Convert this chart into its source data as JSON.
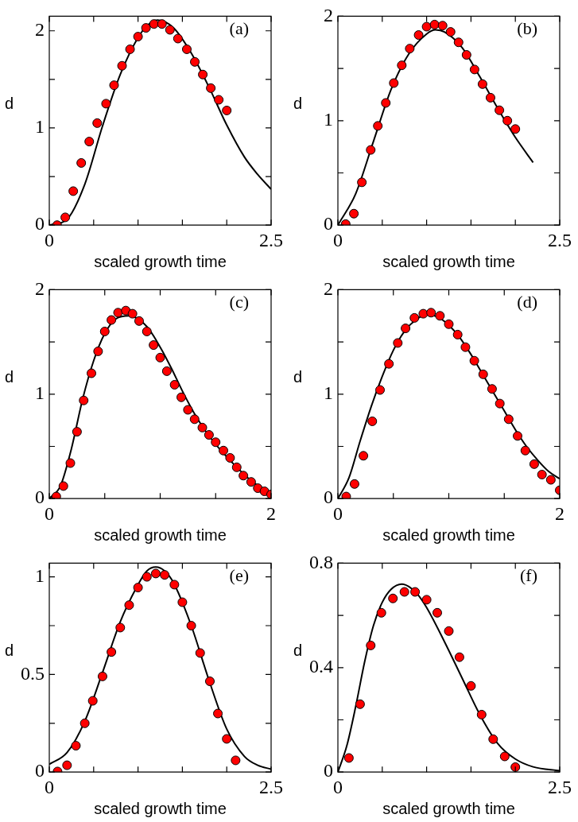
{
  "chart_data": [
    {
      "type": "scatter",
      "xlabel": "scaled growth time",
      "ylabel": "d",
      "annotations": [
        "(a)"
      ],
      "xlim": [
        0,
        2.5
      ],
      "ylim": [
        0,
        2.15
      ],
      "xticks": [
        0,
        {
          "value": 0.5,
          "label": null
        },
        {
          "value": 1,
          "label": null
        },
        {
          "value": 1.5,
          "label": null
        },
        {
          "value": 2,
          "label": null
        },
        2.5
      ],
      "yticks": [
        0,
        {
          "value": 0.5,
          "label": null
        },
        1,
        {
          "value": 1.5,
          "label": null
        },
        2
      ],
      "grid": false,
      "legend": false,
      "series": [
        {
          "type": "line",
          "color": "#000000",
          "marker": "none",
          "line_style": "solid",
          "x": [
            0,
            0.2,
            0.4,
            0.6,
            0.8,
            1.0,
            1.1,
            1.22,
            1.4,
            1.6,
            1.8,
            2.0,
            2.2,
            2.35,
            2.5
          ],
          "values": [
            0,
            0.06,
            0.42,
            1.02,
            1.55,
            1.93,
            2.05,
            2.11,
            2.03,
            1.77,
            1.42,
            1.03,
            0.7,
            0.52,
            0.37
          ]
        },
        {
          "type": "scatter",
          "color": "#ff0000",
          "marker": "circle",
          "x": [
            0.088,
            0.18,
            0.27,
            0.36,
            0.45,
            0.54,
            0.64,
            0.73,
            0.82,
            0.91,
            1.0,
            1.09,
            1.18,
            1.27,
            1.36,
            1.45,
            1.55,
            1.64,
            1.73,
            1.82,
            1.91,
            2.0
          ],
          "values": [
            0,
            0.08,
            0.35,
            0.64,
            0.86,
            1.05,
            1.25,
            1.44,
            1.64,
            1.81,
            1.94,
            2.03,
            2.07,
            2.07,
            2.01,
            1.92,
            1.81,
            1.68,
            1.55,
            1.41,
            1.29,
            1.18
          ]
        }
      ]
    },
    {
      "type": "scatter",
      "xlabel": "scaled growth time",
      "ylabel": "d",
      "annotations": [
        "(b)"
      ],
      "xlim": [
        0,
        2.5
      ],
      "ylim": [
        0,
        2
      ],
      "xticks": [
        0,
        {
          "value": 0.5,
          "label": null
        },
        {
          "value": 1,
          "label": null
        },
        {
          "value": 1.5,
          "label": null
        },
        {
          "value": 2,
          "label": null
        },
        2.5
      ],
      "yticks": [
        0,
        {
          "value": 0.5,
          "label": null
        },
        1,
        {
          "value": 1.5,
          "label": null
        },
        2
      ],
      "grid": false,
      "legend": false,
      "series": [
        {
          "type": "line",
          "color": "#000000",
          "marker": "none",
          "line_style": "solid",
          "x": [
            0,
            0.2,
            0.4,
            0.6,
            0.8,
            1.0,
            1.1,
            1.2,
            1.4,
            1.6,
            1.8,
            2.0,
            2.2
          ],
          "values": [
            0,
            0.3,
            0.8,
            1.3,
            1.64,
            1.83,
            1.87,
            1.85,
            1.7,
            1.42,
            1.12,
            0.84,
            0.6
          ]
        },
        {
          "type": "scatter",
          "color": "#ff0000",
          "marker": "circle",
          "x": [
            0.088,
            0.18,
            0.27,
            0.37,
            0.45,
            0.54,
            0.63,
            0.72,
            0.81,
            0.91,
            1.0,
            1.09,
            1.18,
            1.27,
            1.36,
            1.45,
            1.54,
            1.63,
            1.72,
            1.82,
            1.91,
            2.0
          ],
          "values": [
            0.01,
            0.11,
            0.41,
            0.72,
            0.95,
            1.17,
            1.36,
            1.53,
            1.69,
            1.82,
            1.9,
            1.92,
            1.91,
            1.85,
            1.75,
            1.63,
            1.49,
            1.35,
            1.22,
            1.1,
            1.0,
            0.92
          ]
        }
      ]
    },
    {
      "type": "scatter",
      "xlabel": "scaled growth time",
      "ylabel": "d",
      "annotations": [
        "(c)"
      ],
      "xlim": [
        0,
        2
      ],
      "ylim": [
        0,
        2
      ],
      "xticks": [
        0,
        {
          "value": 0.5,
          "label": null
        },
        {
          "value": 1,
          "label": null
        },
        {
          "value": 1.5,
          "label": null
        },
        2
      ],
      "yticks": [
        0,
        {
          "value": 0.5,
          "label": null
        },
        1,
        {
          "value": 1.5,
          "label": null
        },
        2
      ],
      "grid": false,
      "legend": false,
      "series": [
        {
          "type": "line",
          "color": "#000000",
          "marker": "none",
          "line_style": "solid",
          "x": [
            0,
            0.1,
            0.2,
            0.3,
            0.4,
            0.5,
            0.6,
            0.72,
            0.8,
            0.9,
            1.0,
            1.1,
            1.2,
            1.3,
            1.4,
            1.5,
            1.6,
            1.7,
            1.8,
            1.9,
            2.0
          ],
          "values": [
            0,
            0.12,
            0.48,
            0.95,
            1.32,
            1.58,
            1.72,
            1.75,
            1.72,
            1.62,
            1.45,
            1.25,
            1.03,
            0.83,
            0.66,
            0.52,
            0.4,
            0.29,
            0.19,
            0.11,
            0.05
          ]
        },
        {
          "type": "scatter",
          "color": "#ff0000",
          "marker": "circle",
          "x": [
            0.063,
            0.127,
            0.19,
            0.25,
            0.31,
            0.38,
            0.44,
            0.5,
            0.56,
            0.62,
            0.69,
            0.75,
            0.81,
            0.88,
            0.94,
            1.0,
            1.06,
            1.13,
            1.19,
            1.25,
            1.31,
            1.38,
            1.44,
            1.5,
            1.57,
            1.63,
            1.69,
            1.75,
            1.82,
            1.88,
            1.94,
            2.0
          ],
          "values": [
            0.02,
            0.12,
            0.34,
            0.64,
            0.94,
            1.2,
            1.41,
            1.6,
            1.71,
            1.78,
            1.8,
            1.77,
            1.7,
            1.6,
            1.47,
            1.35,
            1.22,
            1.09,
            0.97,
            0.85,
            0.76,
            0.68,
            0.61,
            0.54,
            0.46,
            0.39,
            0.3,
            0.22,
            0.16,
            0.1,
            0.07,
            0.04
          ]
        }
      ]
    },
    {
      "type": "scatter",
      "xlabel": "scaled growth time",
      "ylabel": "d",
      "annotations": [
        "(d)"
      ],
      "xlim": [
        0,
        2
      ],
      "ylim": [
        0,
        2
      ],
      "xticks": [
        0,
        {
          "value": 0.5,
          "label": null
        },
        {
          "value": 1,
          "label": null
        },
        {
          "value": 1.5,
          "label": null
        },
        2
      ],
      "yticks": [
        0,
        {
          "value": 0.5,
          "label": null
        },
        1,
        {
          "value": 1.5,
          "label": null
        },
        2
      ],
      "grid": false,
      "legend": false,
      "series": [
        {
          "type": "line",
          "color": "#000000",
          "marker": "none",
          "line_style": "solid",
          "x": [
            0,
            0.1,
            0.2,
            0.3,
            0.4,
            0.5,
            0.6,
            0.7,
            0.8,
            0.9,
            1.0,
            1.1,
            1.2,
            1.3,
            1.4,
            1.5,
            1.6,
            1.7,
            1.8,
            1.9,
            2.0
          ],
          "values": [
            0,
            0.2,
            0.55,
            0.88,
            1.17,
            1.42,
            1.6,
            1.71,
            1.76,
            1.74,
            1.66,
            1.54,
            1.38,
            1.2,
            1.02,
            0.84,
            0.66,
            0.5,
            0.37,
            0.26,
            0.19
          ]
        },
        {
          "type": "scatter",
          "color": "#ff0000",
          "marker": "circle",
          "x": [
            0.075,
            0.15,
            0.23,
            0.31,
            0.38,
            0.46,
            0.54,
            0.61,
            0.69,
            0.77,
            0.84,
            0.92,
            1.0,
            1.08,
            1.15,
            1.23,
            1.31,
            1.39,
            1.46,
            1.54,
            1.62,
            1.69,
            1.77,
            1.84,
            1.92,
            2.0
          ],
          "values": [
            0.02,
            0.14,
            0.41,
            0.74,
            1.04,
            1.29,
            1.49,
            1.63,
            1.73,
            1.77,
            1.78,
            1.75,
            1.67,
            1.57,
            1.45,
            1.32,
            1.19,
            1.05,
            0.91,
            0.76,
            0.6,
            0.46,
            0.33,
            0.23,
            0.18,
            0.08
          ]
        }
      ]
    },
    {
      "type": "scatter",
      "xlabel": "scaled growth time",
      "ylabel": "d",
      "annotations": [
        "(e)"
      ],
      "xlim": [
        0,
        2.5
      ],
      "ylim": [
        0,
        1.07
      ],
      "xticks": [
        0,
        {
          "value": 0.5,
          "label": null
        },
        {
          "value": 1,
          "label": null
        },
        {
          "value": 1.5,
          "label": null
        },
        {
          "value": 2,
          "label": null
        },
        2.5
      ],
      "yticks": [
        0,
        {
          "value": 0.25,
          "label": null
        },
        0.5,
        {
          "value": 0.75,
          "label": null
        },
        1
      ],
      "grid": false,
      "legend": false,
      "series": [
        {
          "type": "line",
          "color": "#000000",
          "marker": "none",
          "line_style": "solid",
          "x": [
            0,
            0.2,
            0.4,
            0.6,
            0.8,
            1.0,
            1.1,
            1.2,
            1.3,
            1.4,
            1.6,
            1.8,
            2.0,
            2.2,
            2.35,
            2.5
          ],
          "values": [
            0.04,
            0.1,
            0.26,
            0.51,
            0.77,
            0.96,
            1.03,
            1.05,
            1.03,
            0.97,
            0.75,
            0.47,
            0.22,
            0.08,
            0.035,
            0.015
          ]
        },
        {
          "type": "scatter",
          "color": "#ff0000",
          "marker": "circle",
          "x": [
            0.093,
            0.2,
            0.3,
            0.4,
            0.49,
            0.6,
            0.7,
            0.8,
            0.9,
            1.0,
            1.1,
            1.2,
            1.3,
            1.41,
            1.5,
            1.6,
            1.7,
            1.81,
            1.9,
            2.0,
            2.1
          ],
          "values": [
            0.003,
            0.035,
            0.135,
            0.25,
            0.365,
            0.49,
            0.615,
            0.74,
            0.855,
            0.945,
            1.0,
            1.017,
            1.01,
            0.96,
            0.87,
            0.75,
            0.61,
            0.465,
            0.3,
            0.17,
            0.06
          ]
        }
      ]
    },
    {
      "type": "scatter",
      "xlabel": "scaled growth time",
      "ylabel": "d",
      "annotations": [
        "(f)"
      ],
      "xlim": [
        0,
        2.5
      ],
      "ylim": [
        0,
        0.8
      ],
      "xticks": [
        0,
        {
          "value": 0.5,
          "label": null
        },
        {
          "value": 1,
          "label": null
        },
        {
          "value": 1.5,
          "label": null
        },
        {
          "value": 2,
          "label": null
        },
        2.5
      ],
      "yticks": [
        0,
        {
          "value": 0.2,
          "label": null
        },
        0.4,
        {
          "value": 0.6,
          "label": null
        },
        0.8
      ],
      "grid": false,
      "legend": false,
      "series": [
        {
          "type": "line",
          "color": "#000000",
          "marker": "none",
          "line_style": "solid",
          "x": [
            0,
            0.1,
            0.2,
            0.3,
            0.4,
            0.5,
            0.6,
            0.72,
            0.8,
            0.9,
            1.0,
            1.2,
            1.4,
            1.6,
            1.8,
            2.0,
            2.2,
            2.5
          ],
          "values": [
            0,
            0.1,
            0.25,
            0.42,
            0.56,
            0.65,
            0.7,
            0.72,
            0.71,
            0.68,
            0.63,
            0.5,
            0.36,
            0.22,
            0.11,
            0.05,
            0.02,
            0.005
          ]
        },
        {
          "type": "scatter",
          "color": "#ff0000",
          "marker": "circle",
          "x": [
            0.124,
            0.25,
            0.37,
            0.49,
            0.62,
            0.75,
            0.87,
            1.0,
            1.12,
            1.25,
            1.37,
            1.5,
            1.62,
            1.75,
            1.88,
            2.0
          ],
          "values": [
            0.054,
            0.26,
            0.485,
            0.61,
            0.665,
            0.69,
            0.69,
            0.66,
            0.61,
            0.54,
            0.44,
            0.33,
            0.22,
            0.126,
            0.06,
            0.019
          ]
        }
      ]
    }
  ]
}
